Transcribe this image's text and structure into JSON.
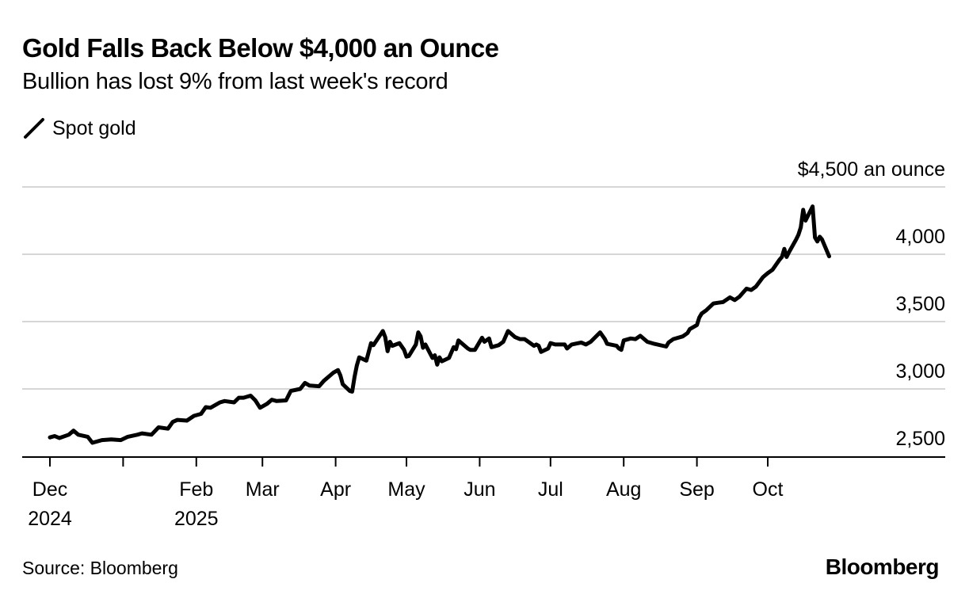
{
  "chart_data": {
    "type": "line",
    "title": "Gold Falls Back Below $4,000 an Ounce",
    "subtitle": "Bullion has lost 9% from last week's record",
    "unit_label": "$4,500 an ounce",
    "source": "Source: Bloomberg",
    "brand": "Bloomberg",
    "ylim": [
      2400,
      4500
    ],
    "y_ticks": [
      {
        "value": 4500,
        "label": "$4,500 an ounce"
      },
      {
        "value": 4000,
        "label": "4,000"
      },
      {
        "value": 3500,
        "label": "3,500"
      },
      {
        "value": 3000,
        "label": "3,000"
      },
      {
        "value": 2500,
        "label": "2,500"
      }
    ],
    "grid": true,
    "xlim": [
      "2024-11-28",
      "2025-11-20"
    ],
    "x_ticks": [
      {
        "date": "2024-12-01",
        "label": "Dec",
        "label2": "2024"
      },
      {
        "date": "2025-01-01",
        "label": "",
        "label2": ""
      },
      {
        "date": "2025-02-01",
        "label": "Feb",
        "label2": "2025"
      },
      {
        "date": "2025-03-01",
        "label": "Mar",
        "label2": ""
      },
      {
        "date": "2025-04-01",
        "label": "Apr",
        "label2": ""
      },
      {
        "date": "2025-05-01",
        "label": "May",
        "label2": ""
      },
      {
        "date": "2025-06-01",
        "label": "Jun",
        "label2": ""
      },
      {
        "date": "2025-07-01",
        "label": "Jul",
        "label2": ""
      },
      {
        "date": "2025-08-01",
        "label": "Aug",
        "label2": ""
      },
      {
        "date": "2025-09-01",
        "label": "Sep",
        "label2": ""
      },
      {
        "date": "2025-10-01",
        "label": "Oct",
        "label2": ""
      }
    ],
    "series": [
      {
        "name": "Spot gold",
        "color": "#000000",
        "points": [
          [
            "2024-12-01",
            2640
          ],
          [
            "2024-12-03",
            2650
          ],
          [
            "2024-12-05",
            2635
          ],
          [
            "2024-12-09",
            2660
          ],
          [
            "2024-12-11",
            2690
          ],
          [
            "2024-12-13",
            2660
          ],
          [
            "2024-12-17",
            2645
          ],
          [
            "2024-12-19",
            2600
          ],
          [
            "2024-12-23",
            2620
          ],
          [
            "2024-12-27",
            2625
          ],
          [
            "2024-12-31",
            2620
          ],
          [
            "2025-01-03",
            2645
          ],
          [
            "2025-01-07",
            2660
          ],
          [
            "2025-01-09",
            2670
          ],
          [
            "2025-01-13",
            2660
          ],
          [
            "2025-01-16",
            2715
          ],
          [
            "2025-01-20",
            2705
          ],
          [
            "2025-01-22",
            2755
          ],
          [
            "2025-01-24",
            2770
          ],
          [
            "2025-01-28",
            2765
          ],
          [
            "2025-01-31",
            2800
          ],
          [
            "2025-02-03",
            2815
          ],
          [
            "2025-02-05",
            2865
          ],
          [
            "2025-02-07",
            2860
          ],
          [
            "2025-02-11",
            2900
          ],
          [
            "2025-02-13",
            2910
          ],
          [
            "2025-02-17",
            2900
          ],
          [
            "2025-02-19",
            2935
          ],
          [
            "2025-02-21",
            2935
          ],
          [
            "2025-02-24",
            2950
          ],
          [
            "2025-02-26",
            2915
          ],
          [
            "2025-02-28",
            2860
          ],
          [
            "2025-03-03",
            2890
          ],
          [
            "2025-03-05",
            2920
          ],
          [
            "2025-03-07",
            2910
          ],
          [
            "2025-03-11",
            2915
          ],
          [
            "2025-03-13",
            2985
          ],
          [
            "2025-03-17",
            3000
          ],
          [
            "2025-03-19",
            3045
          ],
          [
            "2025-03-21",
            3025
          ],
          [
            "2025-03-25",
            3020
          ],
          [
            "2025-03-27",
            3060
          ],
          [
            "2025-03-31",
            3120
          ],
          [
            "2025-04-02",
            3140
          ],
          [
            "2025-04-03",
            3100
          ],
          [
            "2025-04-04",
            3035
          ],
          [
            "2025-04-07",
            2985
          ],
          [
            "2025-04-08",
            2980
          ],
          [
            "2025-04-09",
            3090
          ],
          [
            "2025-04-10",
            3175
          ],
          [
            "2025-04-11",
            3235
          ],
          [
            "2025-04-14",
            3210
          ],
          [
            "2025-04-16",
            3340
          ],
          [
            "2025-04-17",
            3325
          ],
          [
            "2025-04-21",
            3430
          ],
          [
            "2025-04-22",
            3385
          ],
          [
            "2025-04-23",
            3280
          ],
          [
            "2025-04-24",
            3350
          ],
          [
            "2025-04-25",
            3320
          ],
          [
            "2025-04-28",
            3340
          ],
          [
            "2025-04-30",
            3290
          ],
          [
            "2025-05-01",
            3240
          ],
          [
            "2025-05-02",
            3245
          ],
          [
            "2025-05-05",
            3330
          ],
          [
            "2025-05-06",
            3420
          ],
          [
            "2025-05-07",
            3390
          ],
          [
            "2025-05-08",
            3305
          ],
          [
            "2025-05-09",
            3330
          ],
          [
            "2025-05-12",
            3230
          ],
          [
            "2025-05-13",
            3250
          ],
          [
            "2025-05-14",
            3180
          ],
          [
            "2025-05-15",
            3235
          ],
          [
            "2025-05-16",
            3205
          ],
          [
            "2025-05-19",
            3230
          ],
          [
            "2025-05-21",
            3310
          ],
          [
            "2025-05-22",
            3295
          ],
          [
            "2025-05-23",
            3360
          ],
          [
            "2025-05-27",
            3300
          ],
          [
            "2025-05-28",
            3290
          ],
          [
            "2025-05-30",
            3290
          ],
          [
            "2025-06-02",
            3380
          ],
          [
            "2025-06-03",
            3350
          ],
          [
            "2025-06-05",
            3375
          ],
          [
            "2025-06-06",
            3310
          ],
          [
            "2025-06-09",
            3325
          ],
          [
            "2025-06-11",
            3350
          ],
          [
            "2025-06-13",
            3430
          ],
          [
            "2025-06-16",
            3385
          ],
          [
            "2025-06-18",
            3370
          ],
          [
            "2025-06-20",
            3370
          ],
          [
            "2025-06-24",
            3320
          ],
          [
            "2025-06-25",
            3330
          ],
          [
            "2025-06-26",
            3320
          ],
          [
            "2025-06-27",
            3275
          ],
          [
            "2025-06-30",
            3300
          ],
          [
            "2025-07-01",
            3340
          ],
          [
            "2025-07-03",
            3330
          ],
          [
            "2025-07-07",
            3330
          ],
          [
            "2025-07-08",
            3300
          ],
          [
            "2025-07-10",
            3330
          ],
          [
            "2025-07-14",
            3345
          ],
          [
            "2025-07-16",
            3330
          ],
          [
            "2025-07-18",
            3350
          ],
          [
            "2025-07-22",
            3420
          ],
          [
            "2025-07-24",
            3370
          ],
          [
            "2025-07-25",
            3335
          ],
          [
            "2025-07-29",
            3320
          ],
          [
            "2025-07-30",
            3300
          ],
          [
            "2025-07-31",
            3290
          ],
          [
            "2025-08-01",
            3360
          ],
          [
            "2025-08-04",
            3375
          ],
          [
            "2025-08-06",
            3370
          ],
          [
            "2025-08-08",
            3395
          ],
          [
            "2025-08-11",
            3350
          ],
          [
            "2025-08-12",
            3345
          ],
          [
            "2025-08-14",
            3335
          ],
          [
            "2025-08-19",
            3315
          ],
          [
            "2025-08-20",
            3345
          ],
          [
            "2025-08-22",
            3370
          ],
          [
            "2025-08-26",
            3390
          ],
          [
            "2025-08-28",
            3415
          ],
          [
            "2025-08-29",
            3445
          ],
          [
            "2025-09-01",
            3475
          ],
          [
            "2025-09-02",
            3530
          ],
          [
            "2025-09-03",
            3560
          ],
          [
            "2025-09-05",
            3585
          ],
          [
            "2025-09-08",
            3635
          ],
          [
            "2025-09-10",
            3640
          ],
          [
            "2025-09-12",
            3645
          ],
          [
            "2025-09-15",
            3680
          ],
          [
            "2025-09-17",
            3660
          ],
          [
            "2025-09-19",
            3685
          ],
          [
            "2025-09-22",
            3745
          ],
          [
            "2025-09-24",
            3735
          ],
          [
            "2025-09-26",
            3760
          ],
          [
            "2025-09-29",
            3830
          ],
          [
            "2025-10-01",
            3860
          ],
          [
            "2025-10-03",
            3885
          ],
          [
            "2025-10-06",
            3960
          ],
          [
            "2025-10-07",
            3980
          ],
          [
            "2025-10-08",
            4040
          ],
          [
            "2025-10-09",
            3980
          ],
          [
            "2025-10-10",
            4015
          ],
          [
            "2025-10-13",
            4110
          ],
          [
            "2025-10-14",
            4145
          ],
          [
            "2025-10-15",
            4200
          ],
          [
            "2025-10-16",
            4330
          ],
          [
            "2025-10-17",
            4250
          ],
          [
            "2025-10-20",
            4355
          ],
          [
            "2025-10-21",
            4125
          ],
          [
            "2025-10-22",
            4095
          ],
          [
            "2025-10-23",
            4130
          ],
          [
            "2025-10-24",
            4110
          ],
          [
            "2025-10-27",
            3985
          ]
        ]
      }
    ]
  }
}
